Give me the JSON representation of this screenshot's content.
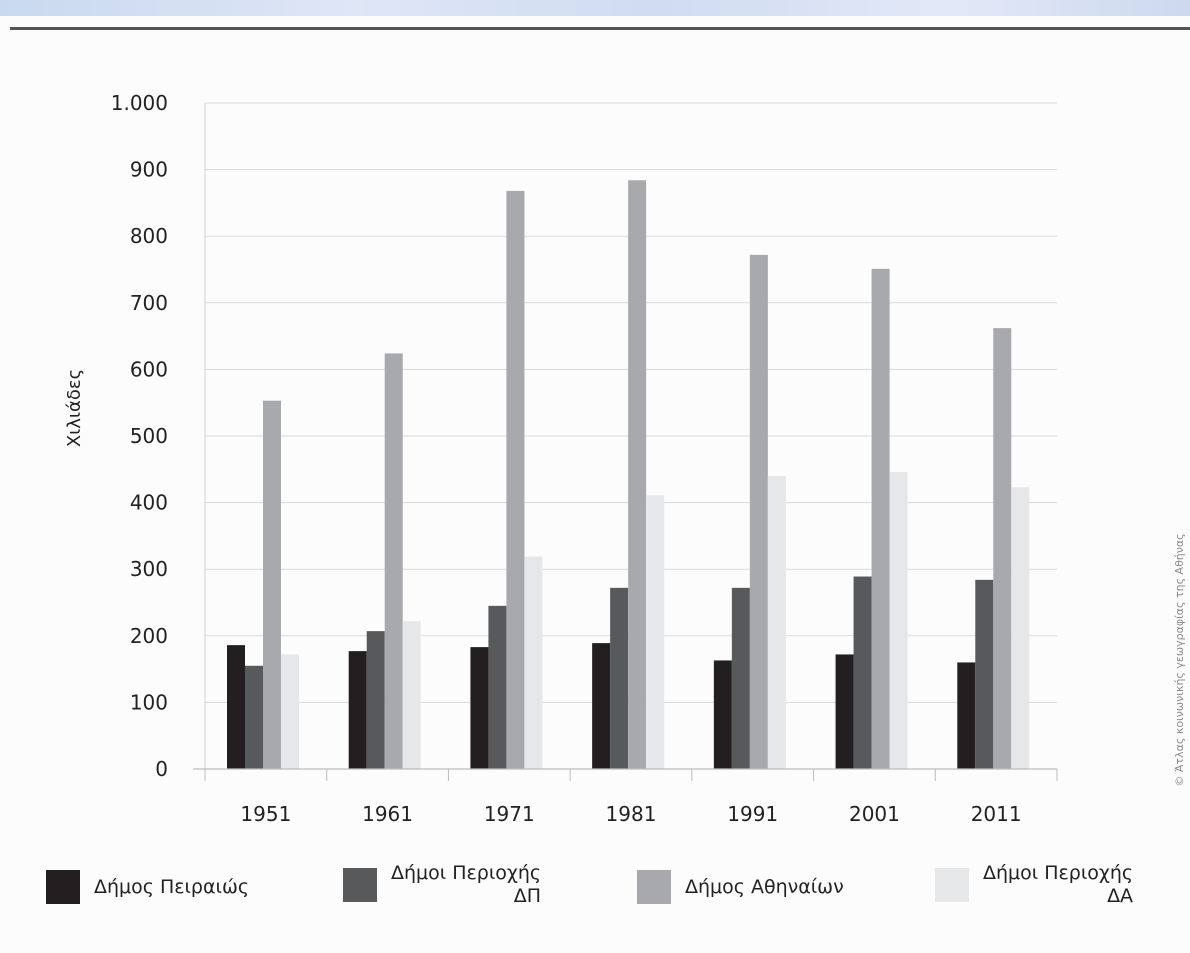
{
  "chart_data": {
    "type": "bar",
    "ylabel": "Χιλιάδες",
    "xlabel": "",
    "ylim": [
      0,
      1000
    ],
    "yticks": [
      0,
      100,
      200,
      300,
      400,
      500,
      600,
      700,
      800,
      900,
      1000
    ],
    "ytick_labels": [
      "0",
      "100",
      "200",
      "300",
      "400",
      "500",
      "600",
      "700",
      "800",
      "900",
      "1.000"
    ],
    "categories": [
      "1951",
      "1961",
      "1971",
      "1981",
      "1991",
      "2001",
      "2011"
    ],
    "grid": true,
    "legend_position": "bottom",
    "series": [
      {
        "name": "Δήμος Πειραιώς",
        "color": "#231f20",
        "values": [
          186,
          177,
          183,
          189,
          163,
          172,
          160
        ]
      },
      {
        "name": "Δήμοι Περιοχής ΔΠ",
        "color": "#58595b",
        "values": [
          155,
          207,
          245,
          272,
          272,
          289,
          284
        ]
      },
      {
        "name": "Δήμος Αθηναίων",
        "color": "#a7a9ac",
        "values": [
          553,
          624,
          868,
          884,
          772,
          751,
          662
        ]
      },
      {
        "name": "Δήμοι Περιοχής ΔΑ",
        "color": "#e6e7e8",
        "values": [
          172,
          222,
          319,
          411,
          440,
          446,
          423
        ]
      }
    ]
  },
  "legend": {
    "items": [
      {
        "label_line1": "Δήμος Πειραιώς",
        "label_line2": ""
      },
      {
        "label_line1": "Δήμοι Περιοχής",
        "label_line2": "ΔΠ"
      },
      {
        "label_line1": "Δήμος Αθηναίων",
        "label_line2": ""
      },
      {
        "label_line1": "Δήμοι Περιοχής",
        "label_line2": "ΔΑ"
      }
    ]
  },
  "credit": "© Άτλας κοινωνικής γεωγραφίας της Αθήνας"
}
